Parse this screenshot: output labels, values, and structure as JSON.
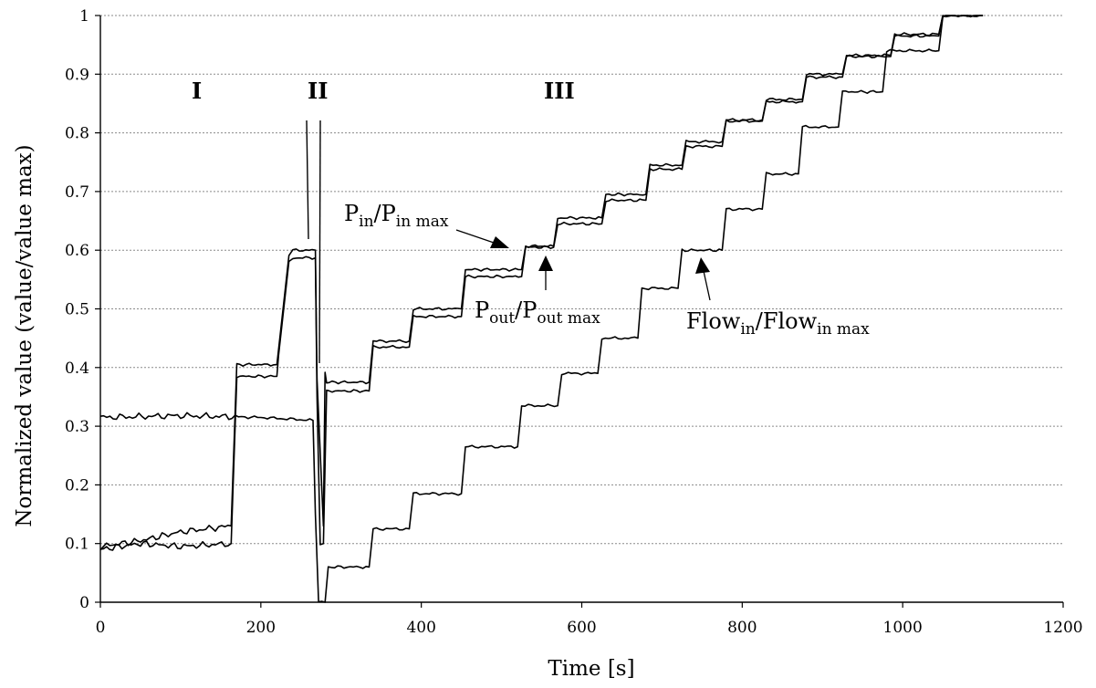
{
  "chart_data": {
    "type": "line",
    "xlabel": "Time [s]",
    "ylabel": "Normalized value (value/value max)",
    "xlim": [
      0,
      1200
    ],
    "ylim": [
      0,
      1
    ],
    "xticks": [
      "0",
      "200",
      "400",
      "600",
      "800",
      "1000",
      "1200"
    ],
    "yticks": [
      "0",
      "0.1",
      "0.2",
      "0.3",
      "0.4",
      "0.5",
      "0.6",
      "0.7",
      "0.8",
      "0.9",
      "1"
    ],
    "grid": "horizontal dotted",
    "regions": [
      "I",
      "II",
      "III"
    ],
    "annotations": {
      "p_in": {
        "main1": "P",
        "sub1": "in",
        "slash": "/",
        "main2": "P",
        "sub2": "in max"
      },
      "p_out": {
        "main1": "P",
        "sub1": "out",
        "slash": "/",
        "main2": "P",
        "sub2": "out max"
      },
      "flow_in": {
        "main1": "Flow",
        "sub1": "in",
        "slash": "/",
        "main2": "Flow",
        "sub2": "in max"
      }
    },
    "series": [
      {
        "name": "Pin/Pin max",
        "x": [
          0,
          50,
          100,
          163,
          170,
          220,
          222,
          235,
          240,
          268,
          270,
          278,
          280,
          282,
          285,
          335,
          340,
          385,
          390,
          450,
          455,
          525,
          530,
          565,
          570,
          625,
          630,
          680,
          685,
          725,
          730,
          775,
          780,
          825,
          830,
          875,
          880,
          925,
          930,
          985,
          990,
          1045,
          1050,
          1100
        ],
        "y": [
          0.095,
          0.105,
          0.12,
          0.13,
          0.405,
          0.405,
          0.43,
          0.59,
          0.6,
          0.6,
          0.38,
          0.13,
          0.39,
          0.375,
          0.375,
          0.375,
          0.445,
          0.445,
          0.5,
          0.5,
          0.567,
          0.567,
          0.607,
          0.607,
          0.655,
          0.655,
          0.695,
          0.695,
          0.745,
          0.745,
          0.785,
          0.785,
          0.822,
          0.822,
          0.857,
          0.857,
          0.9,
          0.9,
          0.932,
          0.932,
          0.968,
          0.968,
          1.0,
          1.0
        ]
      },
      {
        "name": "Pout/Pout max",
        "x": [
          0,
          50,
          100,
          163,
          170,
          220,
          222,
          235,
          240,
          268,
          270,
          274,
          278,
          282,
          285,
          335,
          340,
          385,
          390,
          450,
          455,
          525,
          530,
          565,
          570,
          625,
          630,
          680,
          685,
          725,
          730,
          775,
          780,
          825,
          830,
          875,
          880,
          925,
          930,
          985,
          990,
          1045,
          1050,
          1100
        ],
        "y": [
          0.09,
          0.1,
          0.095,
          0.1,
          0.385,
          0.385,
          0.42,
          0.58,
          0.587,
          0.587,
          0.35,
          0.1,
          0.1,
          0.36,
          0.36,
          0.36,
          0.435,
          0.435,
          0.487,
          0.487,
          0.555,
          0.555,
          0.605,
          0.605,
          0.645,
          0.645,
          0.685,
          0.685,
          0.738,
          0.738,
          0.777,
          0.777,
          0.82,
          0.82,
          0.853,
          0.853,
          0.895,
          0.895,
          0.93,
          0.93,
          0.965,
          0.965,
          1.0,
          1.0
        ]
      },
      {
        "name": "Flowin/Flowin max",
        "x": [
          0,
          100,
          200,
          265,
          268,
          272,
          280,
          284,
          335,
          340,
          385,
          390,
          450,
          455,
          520,
          525,
          570,
          575,
          620,
          625,
          670,
          675,
          720,
          725,
          775,
          780,
          825,
          830,
          870,
          875,
          920,
          925,
          975,
          980,
          1045,
          1050,
          1100
        ],
        "y": [
          0.315,
          0.318,
          0.315,
          0.31,
          0.15,
          0.0,
          0.0,
          0.06,
          0.06,
          0.125,
          0.125,
          0.185,
          0.185,
          0.265,
          0.265,
          0.335,
          0.335,
          0.39,
          0.39,
          0.45,
          0.45,
          0.535,
          0.535,
          0.6,
          0.6,
          0.67,
          0.67,
          0.73,
          0.73,
          0.81,
          0.81,
          0.87,
          0.87,
          0.94,
          0.94,
          1.0,
          1.0
        ]
      }
    ]
  }
}
